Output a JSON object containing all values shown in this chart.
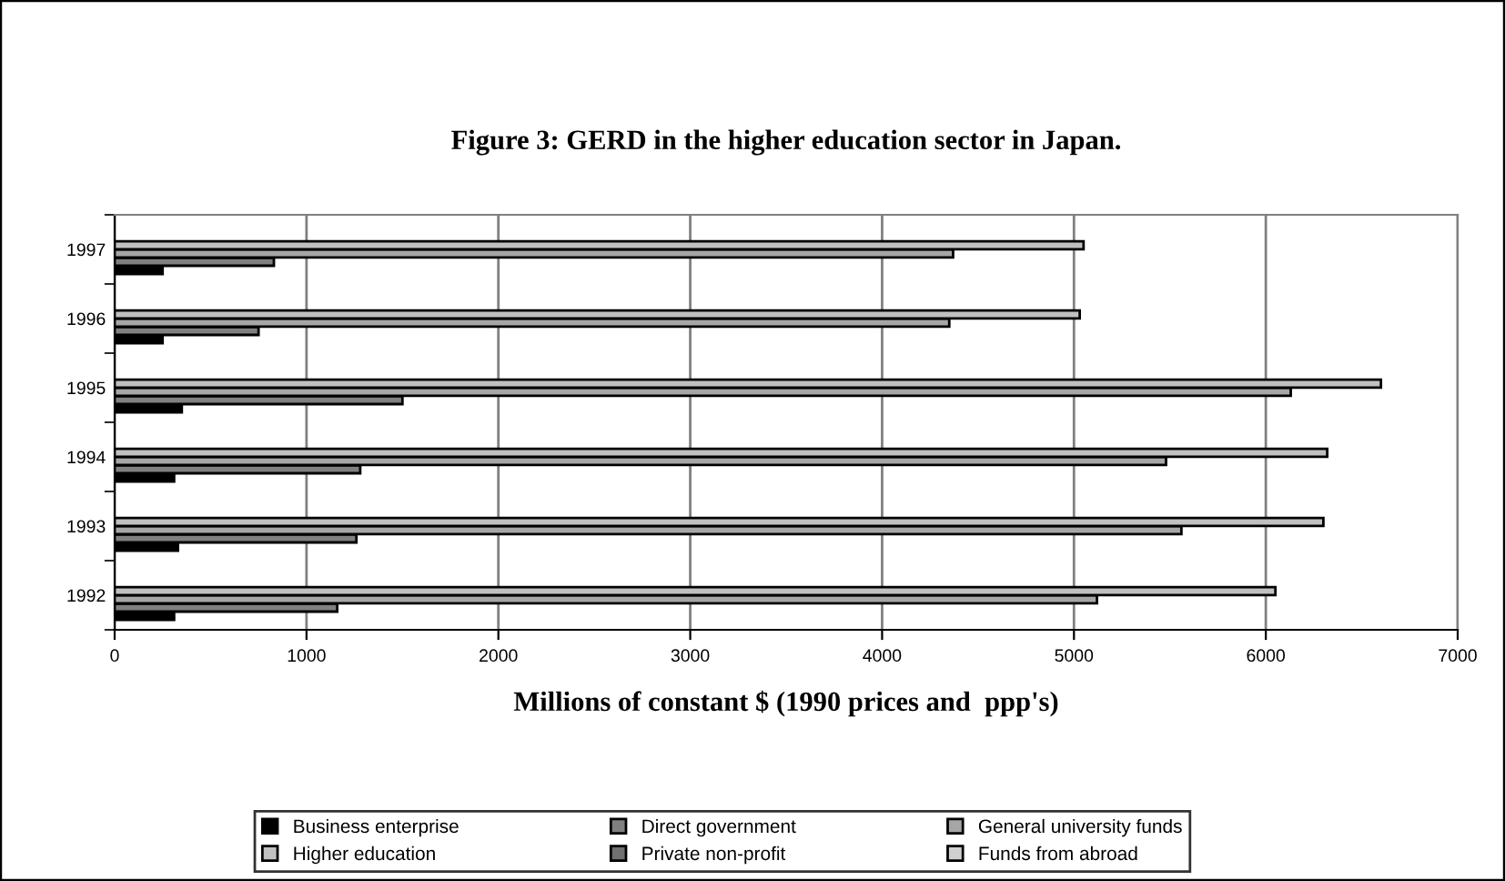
{
  "chart_data": {
    "type": "bar",
    "orientation": "horizontal",
    "title": "Figure 3: GERD in the higher education sector in Japan.",
    "xlabel": "Millions of constant $ (1990 prices and  ppp's)",
    "categories": [
      "1997",
      "1996",
      "1995",
      "1994",
      "1993",
      "1992"
    ],
    "series": [
      {
        "name": "Business enterprise",
        "color": "#000000",
        "values": [
          250,
          250,
          350,
          310,
          330,
          310
        ]
      },
      {
        "name": "Direct government",
        "color": "#808080",
        "values": [
          830,
          750,
          1500,
          1280,
          1260,
          1160
        ]
      },
      {
        "name": "General university funds",
        "color": "#a6a6a6",
        "values": [
          4370,
          4350,
          6130,
          5480,
          5560,
          5120
        ]
      },
      {
        "name": "Higher education",
        "color": "#c0c0c0",
        "values": [
          5050,
          5030,
          6600,
          6320,
          6300,
          6050
        ]
      },
      {
        "name": "Private non-profit",
        "color": "#707070",
        "values": [
          null,
          null,
          null,
          null,
          null,
          null
        ]
      },
      {
        "name": "Funds from abroad",
        "color": "#d0d0d0",
        "values": [
          null,
          null,
          null,
          null,
          null,
          null
        ]
      }
    ],
    "xlim": [
      0,
      7000
    ],
    "xticks": [
      0,
      1000,
      2000,
      3000,
      4000,
      5000,
      6000,
      7000
    ],
    "grid": "x",
    "legend": "bottom"
  }
}
